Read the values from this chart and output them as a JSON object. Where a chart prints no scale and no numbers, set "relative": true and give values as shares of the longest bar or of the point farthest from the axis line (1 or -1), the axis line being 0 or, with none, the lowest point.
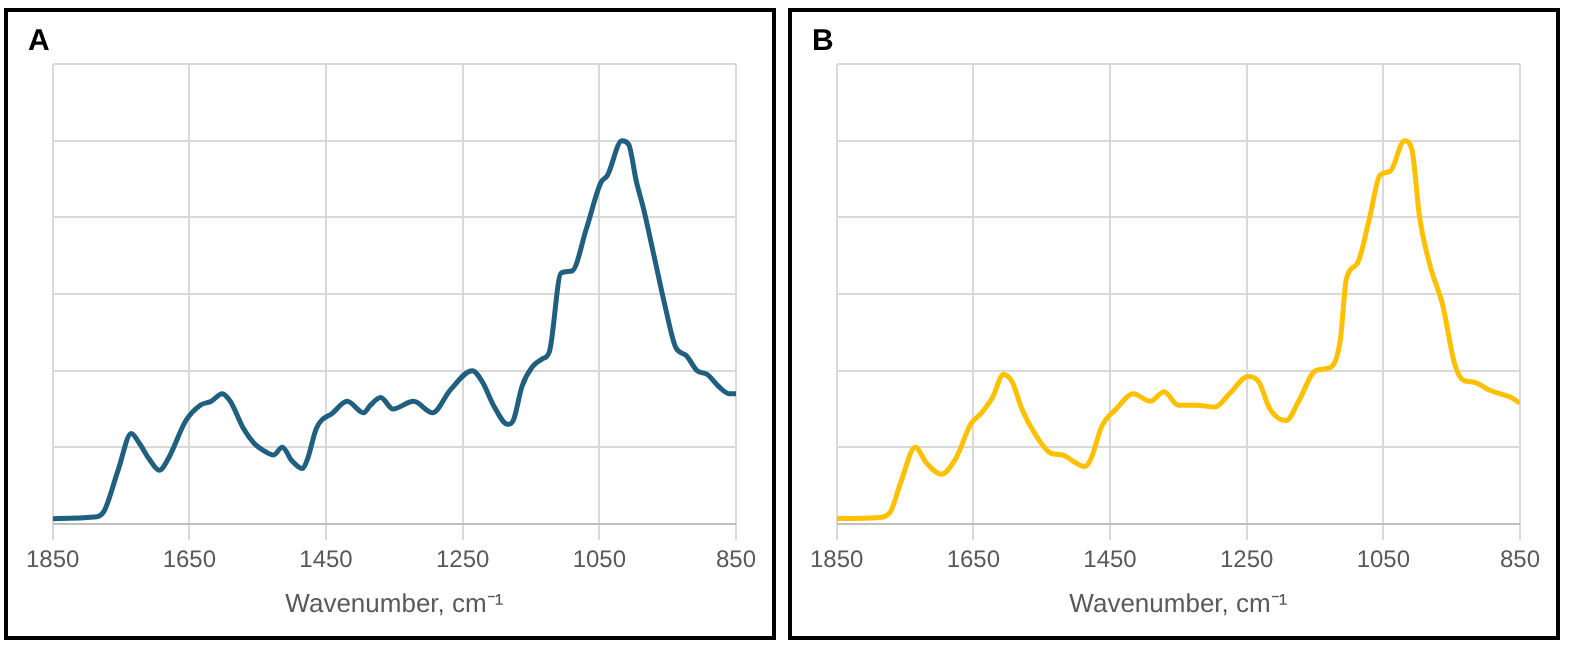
{
  "chart_data": [
    {
      "type": "line",
      "title": "A",
      "xlabel": "Wavenumber, cm⁻¹",
      "relative": true,
      "grid": true,
      "legend": false,
      "xlim": [
        1850,
        850
      ],
      "xticks": [
        1850,
        1650,
        1450,
        1250,
        1050,
        850
      ],
      "series": [
        {
          "color": "#1f5f7f",
          "x": [
            1850,
            1790,
            1775,
            1754,
            1735,
            1723,
            1709,
            1694,
            1681,
            1655,
            1634,
            1618,
            1602,
            1590,
            1571,
            1555,
            1540,
            1527,
            1514,
            1500,
            1485,
            1477,
            1464,
            1440,
            1419,
            1395,
            1385,
            1370,
            1352,
            1322,
            1294,
            1268,
            1236,
            1221,
            1205,
            1184,
            1176,
            1163,
            1148,
            1134,
            1123,
            1106,
            1090,
            1069,
            1048,
            1038,
            1017,
            1007,
            996,
            985,
            970,
            954,
            938,
            923,
            907,
            892,
            876,
            860,
            850
          ],
          "values": [
            0.014,
            0.018,
            0.033,
            0.142,
            0.236,
            0.21,
            0.17,
            0.14,
            0.17,
            0.27,
            0.31,
            0.32,
            0.34,
            0.32,
            0.25,
            0.21,
            0.19,
            0.18,
            0.2,
            0.165,
            0.145,
            0.17,
            0.25,
            0.29,
            0.32,
            0.29,
            0.31,
            0.33,
            0.3,
            0.32,
            0.29,
            0.35,
            0.4,
            0.37,
            0.31,
            0.26,
            0.27,
            0.36,
            0.41,
            0.43,
            0.45,
            0.655,
            0.66,
            0.77,
            0.89,
            0.91,
            1,
            0.99,
            0.895,
            0.82,
            0.7,
            0.57,
            0.46,
            0.44,
            0.4,
            0.39,
            0.36,
            0.34,
            0.34
          ]
        }
      ]
    },
    {
      "type": "line",
      "title": "B",
      "xlabel": "Wavenumber, cm⁻¹",
      "relative": true,
      "grid": true,
      "legend": false,
      "xlim": [
        1850,
        850
      ],
      "xticks": [
        1850,
        1650,
        1450,
        1250,
        1050,
        850
      ],
      "series": [
        {
          "color": "#ffc000",
          "x": [
            1850,
            1788,
            1772,
            1756,
            1735,
            1719,
            1697,
            1676,
            1654,
            1638,
            1622,
            1606,
            1593,
            1579,
            1558,
            1537,
            1519,
            1505,
            1487,
            1478,
            1462,
            1441,
            1416,
            1391,
            1371,
            1350,
            1323,
            1297,
            1275,
            1248,
            1232,
            1216,
            1192,
            1174,
            1149,
            1126,
            1113,
            1104,
            1088,
            1070,
            1055,
            1040,
            1019,
            1008,
            997,
            981,
            963,
            946,
            933,
            917,
            896,
            880,
            863,
            850
          ],
          "values": [
            0.014,
            0.017,
            0.03,
            0.11,
            0.2,
            0.16,
            0.13,
            0.17,
            0.26,
            0.29,
            0.33,
            0.39,
            0.37,
            0.3,
            0.23,
            0.185,
            0.18,
            0.165,
            0.15,
            0.17,
            0.255,
            0.3,
            0.34,
            0.32,
            0.345,
            0.31,
            0.31,
            0.305,
            0.34,
            0.385,
            0.37,
            0.3,
            0.27,
            0.32,
            0.4,
            0.41,
            0.48,
            0.64,
            0.68,
            0.8,
            0.91,
            0.92,
            1,
            0.975,
            0.8,
            0.67,
            0.57,
            0.42,
            0.375,
            0.37,
            0.35,
            0.34,
            0.33,
            0.315
          ]
        }
      ]
    }
  ]
}
